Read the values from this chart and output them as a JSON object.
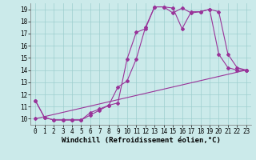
{
  "title": "",
  "xlabel": "Windchill (Refroidissement éolien,°C)",
  "ylabel": "",
  "background_color": "#cbeaea",
  "line_color": "#993399",
  "grid_color": "#9ecece",
  "xlim": [
    -0.5,
    23.5
  ],
  "ylim": [
    9.5,
    19.5
  ],
  "xticks": [
    0,
    1,
    2,
    3,
    4,
    5,
    6,
    7,
    8,
    9,
    10,
    11,
    12,
    13,
    14,
    15,
    16,
    17,
    18,
    19,
    20,
    21,
    22,
    23
  ],
  "yticks": [
    10,
    11,
    12,
    13,
    14,
    15,
    16,
    17,
    18,
    19
  ],
  "line1_x": [
    0,
    1,
    2,
    3,
    4,
    5,
    6,
    7,
    8,
    9,
    10,
    11,
    12,
    13,
    14,
    15,
    16,
    17,
    18,
    19,
    20,
    21,
    22,
    23
  ],
  "line1_y": [
    11.5,
    10.1,
    9.9,
    9.9,
    9.9,
    9.9,
    10.3,
    10.7,
    11.1,
    11.3,
    14.9,
    17.1,
    17.4,
    19.2,
    19.2,
    18.7,
    19.1,
    18.7,
    18.8,
    19.0,
    15.3,
    14.2,
    14.0,
    14.0
  ],
  "line2_x": [
    0,
    1,
    2,
    3,
    4,
    5,
    6,
    7,
    8,
    9,
    10,
    11,
    12,
    13,
    14,
    15,
    16,
    17,
    18,
    19,
    20,
    21,
    22,
    23
  ],
  "line2_y": [
    11.5,
    10.1,
    9.9,
    9.9,
    9.9,
    9.9,
    10.5,
    10.8,
    11.1,
    12.6,
    13.1,
    14.9,
    17.5,
    19.2,
    19.2,
    19.1,
    17.4,
    18.8,
    18.8,
    19.0,
    18.8,
    15.3,
    14.2,
    14.0
  ],
  "line3_x": [
    0,
    23
  ],
  "line3_y": [
    10.0,
    14.0
  ],
  "marker": "D",
  "markersize": 2,
  "linewidth": 0.8,
  "xlabel_fontsize": 6.5,
  "tick_fontsize": 5.5,
  "fig_width": 3.2,
  "fig_height": 2.0,
  "dpi": 100
}
